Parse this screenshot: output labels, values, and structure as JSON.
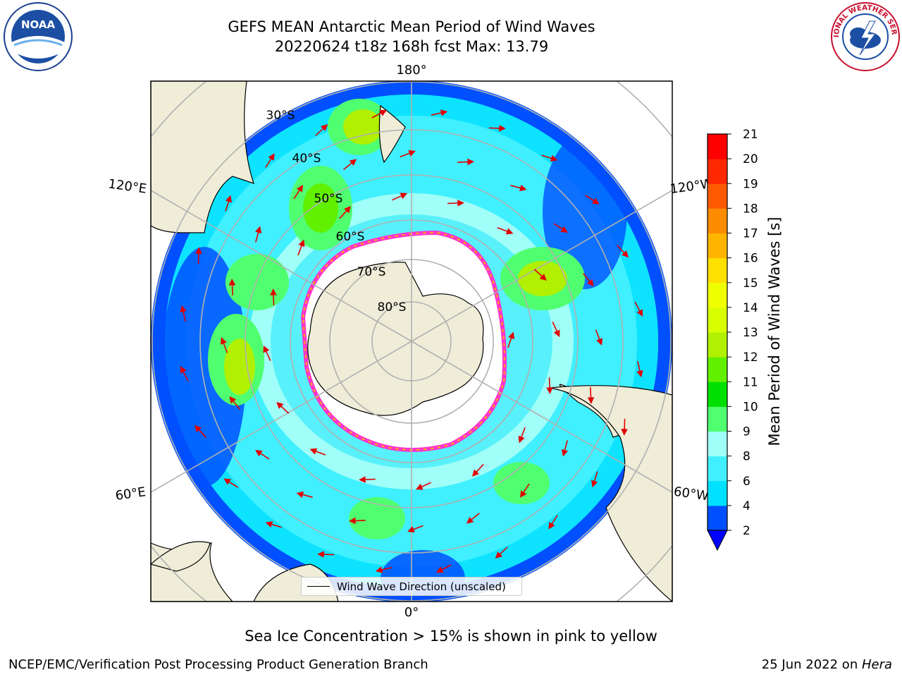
{
  "title": {
    "line1": "GEFS MEAN Antarctic Mean Period of Wind Waves",
    "line2": "20220624 t18z 168h fcst   Max: 13.79"
  },
  "logos": {
    "left": {
      "name": "noaa-logo",
      "text": "NOAA"
    },
    "right": {
      "name": "nws-logo",
      "text": "NATIONAL WEATHER SERVICE"
    }
  },
  "map": {
    "projection": "south-polar-stereographic",
    "longitude_labels": [
      "180°",
      "120°E",
      "120°W",
      "60°E",
      "60°W",
      "0°"
    ],
    "latitude_labels": [
      "30°S",
      "40°S",
      "50°S",
      "60°S",
      "70°S",
      "80°S"
    ],
    "vector_legend": "Wind Wave Direction (unscaled)",
    "colors": {
      "land": "#efedd8",
      "ocean_bg": "#ffffff",
      "grid": "#b0b0b0",
      "arrow": "#e00000",
      "ice_edge": "#ff33cc"
    }
  },
  "colorbar": {
    "label": "Mean Period of Wind Waves [s]",
    "ticks": [
      "2",
      "4",
      "6",
      "8",
      "9",
      "10",
      "11",
      "12",
      "13",
      "14",
      "15",
      "16",
      "17",
      "18",
      "19",
      "20",
      "21"
    ],
    "colors": [
      "#0050ff",
      "#00e0ff",
      "#40f0ff",
      "#a0fff8",
      "#50ff70",
      "#00e000",
      "#60f000",
      "#b0f000",
      "#d8ff00",
      "#f0ff00",
      "#ffe000",
      "#ffb400",
      "#ff8c00",
      "#ff5a00",
      "#ff2800",
      "#ff0000"
    ],
    "under_color": "#0000ff"
  },
  "caption": "Sea Ice Concentration > 15% is shown in pink to yellow",
  "footer": {
    "left": "NCEP/EMC/Verification Post Processing Product Generation Branch",
    "right_prefix": "25 Jun 2022 on ",
    "right_italic": "Hera"
  }
}
